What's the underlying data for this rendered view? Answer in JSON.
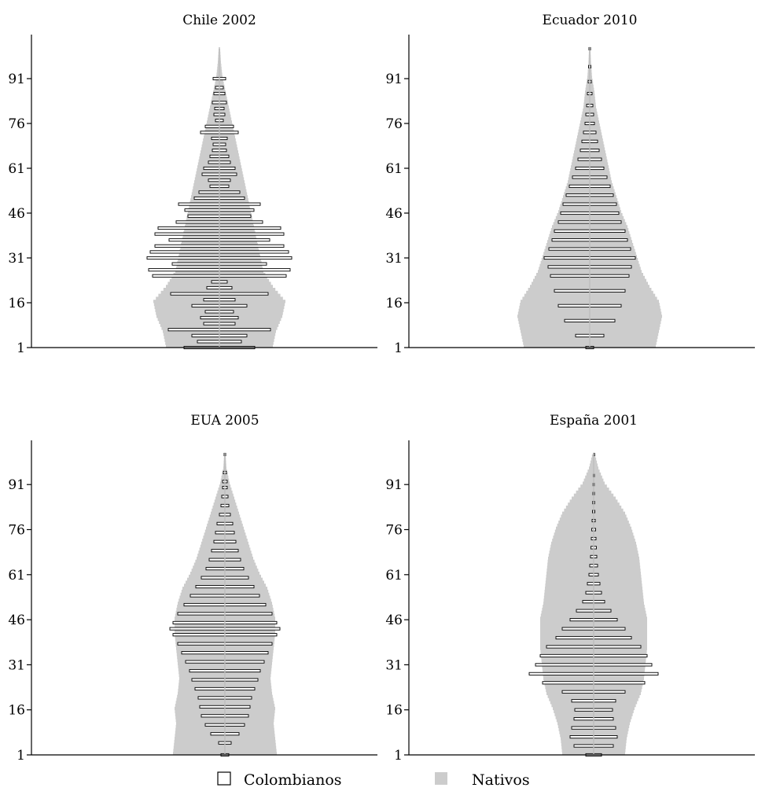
{
  "chart_data": [
    {
      "type": "population_pyramid",
      "title": "Chile 2002",
      "y_ticks": [
        1,
        16,
        31,
        46,
        61,
        76,
        91
      ],
      "ylim": [
        1,
        101
      ],
      "colombianos_fraction_by_age": [
        [
          1,
          0.45
        ],
        [
          3,
          0.28
        ],
        [
          5,
          0.35
        ],
        [
          7,
          0.65
        ],
        [
          9,
          0.2
        ],
        [
          11,
          0.24
        ],
        [
          13,
          0.18
        ],
        [
          15,
          0.35
        ],
        [
          17,
          0.2
        ],
        [
          19,
          0.62
        ],
        [
          21,
          0.16
        ],
        [
          23,
          0.1
        ],
        [
          25,
          0.85
        ],
        [
          27,
          0.9
        ],
        [
          29,
          0.6
        ],
        [
          31,
          0.92
        ],
        [
          33,
          0.88
        ],
        [
          35,
          0.82
        ],
        [
          37,
          0.64
        ],
        [
          39,
          0.82
        ],
        [
          41,
          0.78
        ],
        [
          43,
          0.55
        ],
        [
          45,
          0.4
        ],
        [
          47,
          0.44
        ],
        [
          49,
          0.52
        ],
        [
          51,
          0.32
        ],
        [
          53,
          0.26
        ],
        [
          55,
          0.12
        ],
        [
          57,
          0.14
        ],
        [
          59,
          0.22
        ],
        [
          61,
          0.2
        ],
        [
          63,
          0.14
        ],
        [
          65,
          0.12
        ],
        [
          67,
          0.09
        ],
        [
          69,
          0.08
        ],
        [
          71,
          0.1
        ],
        [
          73,
          0.24
        ],
        [
          75,
          0.18
        ],
        [
          77,
          0.05
        ],
        [
          79,
          0.07
        ],
        [
          81,
          0.06
        ],
        [
          83,
          0.09
        ],
        [
          86,
          0.07
        ],
        [
          88,
          0.05
        ],
        [
          91,
          0.08
        ]
      ],
      "nativos_fraction_by_age": [
        [
          1,
          0.34
        ],
        [
          6,
          0.36
        ],
        [
          11,
          0.4
        ],
        [
          16,
          0.42
        ],
        [
          21,
          0.34
        ],
        [
          26,
          0.28
        ],
        [
          31,
          0.26
        ],
        [
          36,
          0.24
        ],
        [
          41,
          0.22
        ],
        [
          46,
          0.2
        ],
        [
          51,
          0.18
        ],
        [
          56,
          0.16
        ],
        [
          61,
          0.14
        ],
        [
          66,
          0.12
        ],
        [
          71,
          0.1
        ],
        [
          76,
          0.08
        ],
        [
          81,
          0.06
        ],
        [
          86,
          0.04
        ],
        [
          91,
          0.02
        ],
        [
          96,
          0.01
        ],
        [
          101,
          0.004
        ]
      ]
    },
    {
      "type": "population_pyramid",
      "title": "Ecuador 2010",
      "y_ticks": [
        1,
        16,
        31,
        46,
        61,
        76,
        91
      ],
      "ylim": [
        1,
        101
      ],
      "colombianos_fraction_by_age": [
        [
          1,
          0.05
        ],
        [
          5,
          0.18
        ],
        [
          10,
          0.32
        ],
        [
          15,
          0.4
        ],
        [
          20,
          0.45
        ],
        [
          25,
          0.5
        ],
        [
          28,
          0.53
        ],
        [
          31,
          0.58
        ],
        [
          34,
          0.52
        ],
        [
          37,
          0.48
        ],
        [
          40,
          0.45
        ],
        [
          43,
          0.4
        ],
        [
          46,
          0.37
        ],
        [
          49,
          0.34
        ],
        [
          52,
          0.3
        ],
        [
          55,
          0.26
        ],
        [
          58,
          0.22
        ],
        [
          61,
          0.18
        ],
        [
          64,
          0.15
        ],
        [
          67,
          0.12
        ],
        [
          70,
          0.1
        ],
        [
          73,
          0.08
        ],
        [
          76,
          0.06
        ],
        [
          79,
          0.05
        ],
        [
          82,
          0.04
        ],
        [
          86,
          0.03
        ],
        [
          90,
          0.02
        ],
        [
          95,
          0.015
        ],
        [
          101,
          0.01
        ]
      ],
      "nativos_fraction_by_age": [
        [
          1,
          0.42
        ],
        [
          6,
          0.44
        ],
        [
          11,
          0.46
        ],
        [
          16,
          0.44
        ],
        [
          21,
          0.38
        ],
        [
          26,
          0.33
        ],
        [
          31,
          0.3
        ],
        [
          36,
          0.27
        ],
        [
          41,
          0.24
        ],
        [
          46,
          0.2
        ],
        [
          51,
          0.17
        ],
        [
          56,
          0.14
        ],
        [
          61,
          0.12
        ],
        [
          66,
          0.1
        ],
        [
          71,
          0.08
        ],
        [
          76,
          0.06
        ],
        [
          81,
          0.04
        ],
        [
          86,
          0.03
        ],
        [
          91,
          0.015
        ],
        [
          96,
          0.008
        ],
        [
          101,
          0.004
        ]
      ]
    },
    {
      "type": "population_pyramid",
      "title": "EUA  2005",
      "y_ticks": [
        1,
        16,
        31,
        46,
        61,
        76,
        91
      ],
      "ylim": [
        1,
        101
      ],
      "colombianos_fraction_by_age": [
        [
          1,
          0.05
        ],
        [
          5,
          0.08
        ],
        [
          8,
          0.18
        ],
        [
          11,
          0.25
        ],
        [
          14,
          0.3
        ],
        [
          17,
          0.32
        ],
        [
          20,
          0.34
        ],
        [
          23,
          0.38
        ],
        [
          26,
          0.42
        ],
        [
          29,
          0.45
        ],
        [
          32,
          0.5
        ],
        [
          35,
          0.55
        ],
        [
          38,
          0.6
        ],
        [
          41,
          0.66
        ],
        [
          43,
          0.7
        ],
        [
          45,
          0.66
        ],
        [
          48,
          0.6
        ],
        [
          51,
          0.52
        ],
        [
          54,
          0.44
        ],
        [
          57,
          0.37
        ],
        [
          60,
          0.3
        ],
        [
          63,
          0.24
        ],
        [
          66,
          0.2
        ],
        [
          69,
          0.17
        ],
        [
          72,
          0.14
        ],
        [
          75,
          0.12
        ],
        [
          78,
          0.1
        ],
        [
          81,
          0.07
        ],
        [
          84,
          0.05
        ],
        [
          87,
          0.04
        ],
        [
          90,
          0.03
        ],
        [
          92,
          0.03
        ],
        [
          95,
          0.02
        ],
        [
          101,
          0.01
        ]
      ],
      "nativos_fraction_by_age": [
        [
          1,
          0.33
        ],
        [
          6,
          0.32
        ],
        [
          11,
          0.31
        ],
        [
          16,
          0.32
        ],
        [
          21,
          0.3
        ],
        [
          26,
          0.29
        ],
        [
          31,
          0.3
        ],
        [
          36,
          0.31
        ],
        [
          41,
          0.32
        ],
        [
          46,
          0.32
        ],
        [
          51,
          0.3
        ],
        [
          56,
          0.27
        ],
        [
          61,
          0.22
        ],
        [
          66,
          0.18
        ],
        [
          71,
          0.15
        ],
        [
          76,
          0.12
        ],
        [
          81,
          0.09
        ],
        [
          86,
          0.06
        ],
        [
          91,
          0.03
        ],
        [
          96,
          0.01
        ],
        [
          101,
          0.004
        ]
      ]
    },
    {
      "type": "population_pyramid",
      "title": "España 2001",
      "y_ticks": [
        1,
        16,
        31,
        46,
        61,
        76,
        91
      ],
      "ylim": [
        1,
        101
      ],
      "colombianos_fraction_by_age": [
        [
          1,
          0.1
        ],
        [
          4,
          0.25
        ],
        [
          7,
          0.3
        ],
        [
          10,
          0.28
        ],
        [
          13,
          0.25
        ],
        [
          16,
          0.24
        ],
        [
          19,
          0.28
        ],
        [
          22,
          0.4
        ],
        [
          25,
          0.65
        ],
        [
          28,
          0.82
        ],
        [
          31,
          0.74
        ],
        [
          34,
          0.68
        ],
        [
          37,
          0.6
        ],
        [
          40,
          0.48
        ],
        [
          43,
          0.4
        ],
        [
          46,
          0.3
        ],
        [
          49,
          0.22
        ],
        [
          52,
          0.14
        ],
        [
          55,
          0.1
        ],
        [
          58,
          0.08
        ],
        [
          61,
          0.06
        ],
        [
          64,
          0.05
        ],
        [
          67,
          0.04
        ],
        [
          70,
          0.035
        ],
        [
          73,
          0.03
        ],
        [
          76,
          0.025
        ],
        [
          79,
          0.02
        ],
        [
          82,
          0.015
        ],
        [
          85,
          0.012
        ],
        [
          88,
          0.01
        ],
        [
          91,
          0.008
        ],
        [
          94,
          0.006
        ],
        [
          101,
          0.003
        ]
      ],
      "nativos_fraction_by_age": [
        [
          1,
          0.2
        ],
        [
          6,
          0.21
        ],
        [
          11,
          0.23
        ],
        [
          16,
          0.26
        ],
        [
          21,
          0.3
        ],
        [
          26,
          0.32
        ],
        [
          31,
          0.33
        ],
        [
          36,
          0.34
        ],
        [
          41,
          0.34
        ],
        [
          46,
          0.34
        ],
        [
          51,
          0.32
        ],
        [
          56,
          0.31
        ],
        [
          61,
          0.3
        ],
        [
          66,
          0.29
        ],
        [
          71,
          0.27
        ],
        [
          76,
          0.24
        ],
        [
          81,
          0.2
        ],
        [
          86,
          0.14
        ],
        [
          91,
          0.07
        ],
        [
          96,
          0.03
        ],
        [
          101,
          0.006
        ]
      ]
    }
  ],
  "legend": {
    "items": [
      {
        "label": "Colombianos",
        "color": "#ffffff"
      },
      {
        "label": "Nativos",
        "color": "#cccccc"
      }
    ]
  },
  "colors": {
    "nativos": "#cccccc",
    "colombianos_fill": "#ffffff",
    "colombianos_stroke": "#000000"
  }
}
